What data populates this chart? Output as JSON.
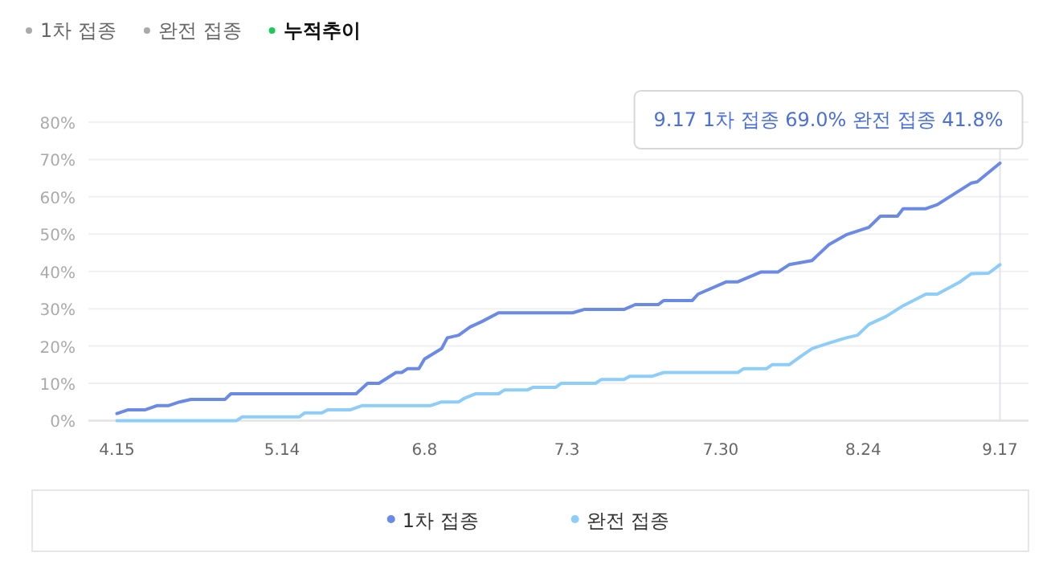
{
  "chart_data": {
    "type": "line",
    "annotations": [
      "1차 접종",
      "완전 접종",
      "누적추이",
      {
        "text": "9.17  1차 접종 69.0%  완전 접종 41.8%",
        "x": "--09-17",
        "y": 69.0
      }
    ],
    "xlim": [
      "--04-10",
      "--09-22"
    ],
    "xticks": [
      {
        "value": "--04-15",
        "label": "4.15"
      },
      {
        "value": "--05-14",
        "label": "5.14"
      },
      {
        "value": "--06-08",
        "label": "6.8"
      },
      {
        "value": "--07-03",
        "label": "7.3"
      },
      {
        "value": "--07-30",
        "label": "7.30"
      },
      {
        "value": "--08-24",
        "label": "8.24"
      },
      {
        "value": "--09-17",
        "label": "9.17"
      }
    ],
    "ylim": [
      0,
      80
    ],
    "yticks": [
      {
        "value": 0,
        "label": "0%"
      },
      {
        "value": 10,
        "label": "10%"
      },
      {
        "value": 20,
        "label": "20%"
      },
      {
        "value": 30,
        "label": "30%"
      },
      {
        "value": 40,
        "label": "40%"
      },
      {
        "value": 50,
        "label": "50%"
      },
      {
        "value": 60,
        "label": "60%"
      },
      {
        "value": 70,
        "label": "70%"
      },
      {
        "value": 80,
        "label": "80%"
      }
    ],
    "grid": "y",
    "legend": "bottom",
    "marker": "none",
    "line_style": "solid",
    "ref_lines": [
      {
        "axis": "x",
        "value": "--09-17",
        "color": "#dfe3ea"
      }
    ],
    "series": [
      {
        "name": "1차 접종",
        "color": "#6a8ae6",
        "x": [
          "--04-15",
          "--04-17",
          "--04-20",
          "--04-22",
          "--04-24",
          "--04-26",
          "--04-28",
          "--05-04",
          "--05-05",
          "--05-27",
          "--05-29",
          "--05-31",
          "--06-03",
          "--06-04",
          "--06-05",
          "--06-07",
          "--06-08",
          "--06-11",
          "--06-12",
          "--06-14",
          "--06-16",
          "--06-18",
          "--06-21",
          "--06-30",
          "--07-04",
          "--07-06",
          "--07-13",
          "--07-15",
          "--07-19",
          "--07-20",
          "--07-25",
          "--07-26",
          "--07-31",
          "--08-02",
          "--08-06",
          "--08-09",
          "--08-11",
          "--08-15",
          "--08-18",
          "--08-21",
          "--08-25",
          "--08-27",
          "--08-30",
          "--08-31",
          "--09-04",
          "--09-06",
          "--09-09",
          "--09-12",
          "--09-13",
          "--09-17"
        ],
        "values": [
          1.9,
          2.9,
          2.9,
          4.0,
          4.0,
          5.0,
          5.7,
          5.7,
          7.2,
          7.2,
          10.0,
          10.0,
          12.9,
          12.9,
          13.9,
          13.9,
          16.5,
          19.3,
          22.2,
          22.9,
          25.1,
          26.5,
          28.9,
          28.9,
          28.9,
          29.8,
          29.8,
          31.1,
          31.1,
          32.2,
          32.2,
          33.9,
          37.2,
          37.2,
          39.8,
          39.8,
          41.8,
          42.9,
          47.2,
          49.8,
          51.8,
          54.8,
          54.8,
          56.8,
          56.8,
          57.9,
          60.8,
          63.7,
          64.0,
          69.0
        ]
      },
      {
        "name": "완전 접종",
        "color": "#8dcdf8",
        "x": [
          "--04-15",
          "--05-06",
          "--05-07",
          "--05-17",
          "--05-18",
          "--05-21",
          "--05-22",
          "--05-26",
          "--05-28",
          "--06-09",
          "--06-11",
          "--06-14",
          "--06-15",
          "--06-17",
          "--06-21",
          "--06-22",
          "--06-26",
          "--06-27",
          "--07-01",
          "--07-02",
          "--07-08",
          "--07-09",
          "--07-13",
          "--07-14",
          "--07-18",
          "--07-20",
          "--08-02",
          "--08-03",
          "--08-07",
          "--08-08",
          "--08-11",
          "--08-13",
          "--08-15",
          "--08-18",
          "--08-21",
          "--08-23",
          "--08-25",
          "--08-28",
          "--08-31",
          "--09-04",
          "--09-06",
          "--09-10",
          "--09-12",
          "--09-15",
          "--09-17"
        ],
        "values": [
          0,
          0,
          1.0,
          1.0,
          2.1,
          2.1,
          2.9,
          2.9,
          4.0,
          4.0,
          5.0,
          5.0,
          6.0,
          7.2,
          7.2,
          8.2,
          8.2,
          8.9,
          8.9,
          10.0,
          10.0,
          11.0,
          11.0,
          11.9,
          11.9,
          12.9,
          12.9,
          13.9,
          13.9,
          15.0,
          15.0,
          17.2,
          19.3,
          20.8,
          22.2,
          22.9,
          25.8,
          27.9,
          30.8,
          33.9,
          33.9,
          37.2,
          39.4,
          39.5,
          41.8
        ]
      }
    ]
  }
}
